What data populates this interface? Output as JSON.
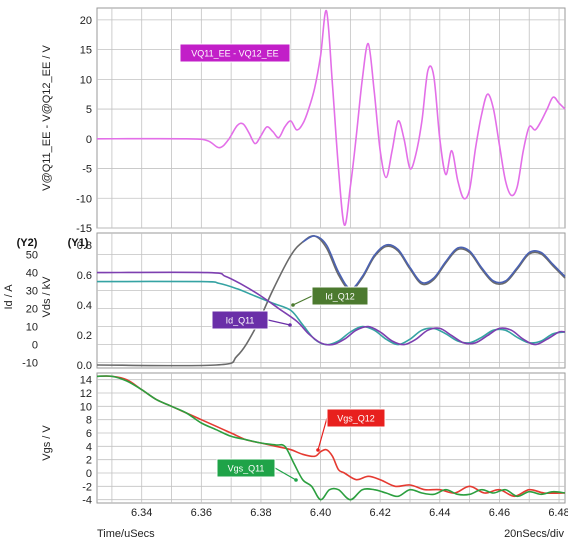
{
  "chart_data": [
    {
      "type": "line",
      "ylabel": "V@Q11_EE - V@Q12_EE / V",
      "xlim": [
        6.325,
        6.482
      ],
      "ylim": [
        -15,
        22
      ],
      "yticks": [
        -15,
        -10,
        -5,
        0,
        5,
        10,
        15,
        20
      ],
      "grid": true,
      "annotations": [
        {
          "text": "VQ11_EE - VQ12_EE",
          "color": "#c21fc8"
        }
      ],
      "series": [
        {
          "color": "#e36fe8",
          "x": [
            6.325,
            6.355,
            6.362,
            6.366,
            6.369,
            6.372,
            6.374,
            6.376,
            6.378,
            6.38,
            6.382,
            6.384,
            6.386,
            6.388,
            6.39,
            6.392,
            6.394,
            6.396,
            6.398,
            6.4,
            6.402,
            6.404,
            6.406,
            6.408,
            6.41,
            6.412,
            6.414,
            6.416,
            6.418,
            6.42,
            6.422,
            6.424,
            6.426,
            6.428,
            6.43,
            6.432,
            6.434,
            6.436,
            6.438,
            6.44,
            6.442,
            6.444,
            6.446,
            6.448,
            6.45,
            6.452,
            6.454,
            6.456,
            6.458,
            6.46,
            6.462,
            6.464,
            6.466,
            6.468,
            6.47,
            6.472,
            6.474,
            6.476,
            6.478,
            6.48,
            6.482
          ],
          "y": [
            0,
            0,
            -0.3,
            -1.5,
            -0.2,
            2.2,
            2.5,
            1.0,
            -0.8,
            0.5,
            2.0,
            1.2,
            0.2,
            2.0,
            3.0,
            1.5,
            2.5,
            5.0,
            8.5,
            14.0,
            21.5,
            9.0,
            -5.0,
            -14.5,
            -8.0,
            0.5,
            10.0,
            16.0,
            8.0,
            -2.0,
            -6.5,
            -2.0,
            3.0,
            0.0,
            -5.0,
            -2.5,
            3.0,
            11.5,
            10.5,
            0.0,
            -6.0,
            -2.0,
            -7.0,
            -10.0,
            -8.5,
            -1.5,
            4.0,
            7.5,
            5.0,
            -1.0,
            -7.0,
            -9.5,
            -8.0,
            -2.0,
            2.0,
            1.5,
            3.0,
            5.0,
            7.0,
            6.0,
            5.0
          ]
        }
      ]
    },
    {
      "type": "line",
      "ylabel": "Vds / kV",
      "y2label": "Id / A",
      "xlim": [
        6.325,
        6.482
      ],
      "y2ticks": [
        -10,
        0,
        10,
        20,
        30,
        40,
        50
      ],
      "yticks": [
        0.0,
        0.2,
        0.4,
        0.6,
        0.8
      ],
      "y2lim": [
        -13,
        62
      ],
      "ylim": [
        -0.02,
        0.88
      ],
      "axis_badges": [
        "(Y2)",
        "(Y1)"
      ],
      "grid": true,
      "annotations": [
        {
          "text": "Id_Q12",
          "color": "#4c7a2f"
        },
        {
          "text": "Id_Q11",
          "color": "#6a2fa8"
        }
      ],
      "series": [
        {
          "color": "#6a6a6a",
          "axis": "y1",
          "x": [
            6.325,
            6.365,
            6.372,
            6.378,
            6.384,
            6.39,
            6.394,
            6.398,
            6.402,
            6.406,
            6.41,
            6.414,
            6.418,
            6.422,
            6.426,
            6.43,
            6.434,
            6.438,
            6.442,
            6.446,
            6.45,
            6.454,
            6.458,
            6.462,
            6.466,
            6.47,
            6.474,
            6.478,
            6.482
          ],
          "y": [
            0.0,
            0.0,
            0.06,
            0.24,
            0.5,
            0.73,
            0.82,
            0.86,
            0.78,
            0.6,
            0.5,
            0.58,
            0.72,
            0.79,
            0.76,
            0.64,
            0.54,
            0.57,
            0.68,
            0.77,
            0.75,
            0.64,
            0.55,
            0.55,
            0.64,
            0.74,
            0.74,
            0.66,
            0.58
          ]
        },
        {
          "color": "#4b62b3",
          "axis": "y1",
          "x": [
            6.394,
            6.398,
            6.402,
            6.406,
            6.41,
            6.414,
            6.418,
            6.422,
            6.426,
            6.43,
            6.434,
            6.438,
            6.442,
            6.446,
            6.45,
            6.454,
            6.458,
            6.462,
            6.466,
            6.47,
            6.474,
            6.478,
            6.482
          ],
          "y": [
            0.82,
            0.86,
            0.8,
            0.62,
            0.51,
            0.59,
            0.73,
            0.8,
            0.77,
            0.65,
            0.55,
            0.58,
            0.69,
            0.78,
            0.76,
            0.65,
            0.56,
            0.56,
            0.65,
            0.75,
            0.75,
            0.67,
            0.59
          ]
        },
        {
          "name": "Id_Q12",
          "color": "#35a3a3",
          "axis": "y2",
          "x": [
            6.325,
            6.36,
            6.366,
            6.372,
            6.378,
            6.384,
            6.39,
            6.394,
            6.398,
            6.402,
            6.406,
            6.41,
            6.414,
            6.418,
            6.422,
            6.426,
            6.43,
            6.434,
            6.438,
            6.442,
            6.446,
            6.45,
            6.454,
            6.458,
            6.462,
            6.466,
            6.47,
            6.474,
            6.478,
            6.482
          ],
          "y": [
            35,
            35,
            34,
            31,
            27,
            23,
            19,
            11,
            3,
            0,
            2,
            7,
            10,
            8,
            3,
            0,
            3,
            8,
            9,
            6,
            2,
            1,
            4,
            8,
            8,
            4,
            1,
            2,
            6,
            7
          ]
        },
        {
          "name": "Id_Q11",
          "color": "#7d3fb0",
          "axis": "y2",
          "x": [
            6.325,
            6.362,
            6.368,
            6.374,
            6.38,
            6.386,
            6.392,
            6.396,
            6.4,
            6.404,
            6.408,
            6.412,
            6.416,
            6.42,
            6.424,
            6.428,
            6.432,
            6.436,
            6.44,
            6.444,
            6.448,
            6.452,
            6.456,
            6.46,
            6.464,
            6.468,
            6.472,
            6.476,
            6.48,
            6.482
          ],
          "y": [
            40,
            40,
            38,
            33,
            27,
            20,
            13,
            6,
            1,
            0,
            3,
            8,
            10,
            7,
            2,
            0,
            3,
            8,
            9,
            5,
            1,
            1,
            5,
            9,
            8,
            3,
            0,
            3,
            7,
            7
          ]
        }
      ]
    },
    {
      "type": "line",
      "ylabel": "Vgs / V",
      "xlabel": "Time/uSecs",
      "xlim": [
        6.325,
        6.482
      ],
      "ylim": [
        -4.5,
        15
      ],
      "yticks": [
        -4,
        -2,
        0,
        2,
        4,
        6,
        8,
        10,
        12,
        14
      ],
      "xticks": [
        6.34,
        6.36,
        6.38,
        6.4,
        6.42,
        6.44,
        6.46,
        6.48
      ],
      "scale_note": "20nSecs/div",
      "grid": true,
      "annotations": [
        {
          "text": "Vgs_Q12",
          "color": "#e8201e"
        },
        {
          "text": "Vgs_Q11",
          "color": "#1fa348"
        }
      ],
      "series": [
        {
          "name": "Vgs_Q12",
          "color": "#e53a31",
          "x": [
            6.325,
            6.33,
            6.335,
            6.34,
            6.345,
            6.35,
            6.355,
            6.36,
            6.365,
            6.37,
            6.375,
            6.38,
            6.385,
            6.39,
            6.394,
            6.398,
            6.4,
            6.402,
            6.404,
            6.406,
            6.408,
            6.412,
            6.416,
            6.42,
            6.425,
            6.43,
            6.435,
            6.44,
            6.445,
            6.45,
            6.455,
            6.46,
            6.465,
            6.47,
            6.475,
            6.482
          ],
          "y": [
            14.5,
            14.5,
            14.0,
            12.5,
            11.0,
            10.0,
            9.0,
            8.0,
            7.0,
            6.0,
            5.0,
            4.5,
            4.0,
            3.5,
            2.8,
            2.5,
            3.2,
            3.5,
            2.5,
            0.5,
            0.0,
            -1.0,
            -0.5,
            -1.0,
            -2.0,
            -1.8,
            -2.5,
            -2.5,
            -3.0,
            -2.0,
            -3.0,
            -2.5,
            -3.5,
            -2.5,
            -3.0,
            -3.0
          ]
        },
        {
          "name": "Vgs_Q11",
          "color": "#2c9f3f",
          "x": [
            6.325,
            6.33,
            6.335,
            6.34,
            6.345,
            6.35,
            6.355,
            6.36,
            6.365,
            6.37,
            6.375,
            6.38,
            6.385,
            6.388,
            6.391,
            6.394,
            6.397,
            6.4,
            6.403,
            6.406,
            6.41,
            6.414,
            6.418,
            6.422,
            6.426,
            6.43,
            6.434,
            6.438,
            6.442,
            6.446,
            6.45,
            6.454,
            6.458,
            6.462,
            6.466,
            6.47,
            6.474,
            6.478,
            6.482
          ],
          "y": [
            14.5,
            14.5,
            13.8,
            12.5,
            11.0,
            10.0,
            9.0,
            7.5,
            6.5,
            5.5,
            5.0,
            4.5,
            4.2,
            4.0,
            1.5,
            -1.0,
            -2.0,
            -4.0,
            -2.5,
            -2.5,
            -4.0,
            -2.5,
            -2.5,
            -3.0,
            -3.5,
            -2.5,
            -3.0,
            -3.2,
            -2.5,
            -3.2,
            -3.2,
            -2.5,
            -3.0,
            -2.5,
            -3.5,
            -2.8,
            -3.2,
            -2.8,
            -3.0
          ]
        }
      ]
    }
  ]
}
